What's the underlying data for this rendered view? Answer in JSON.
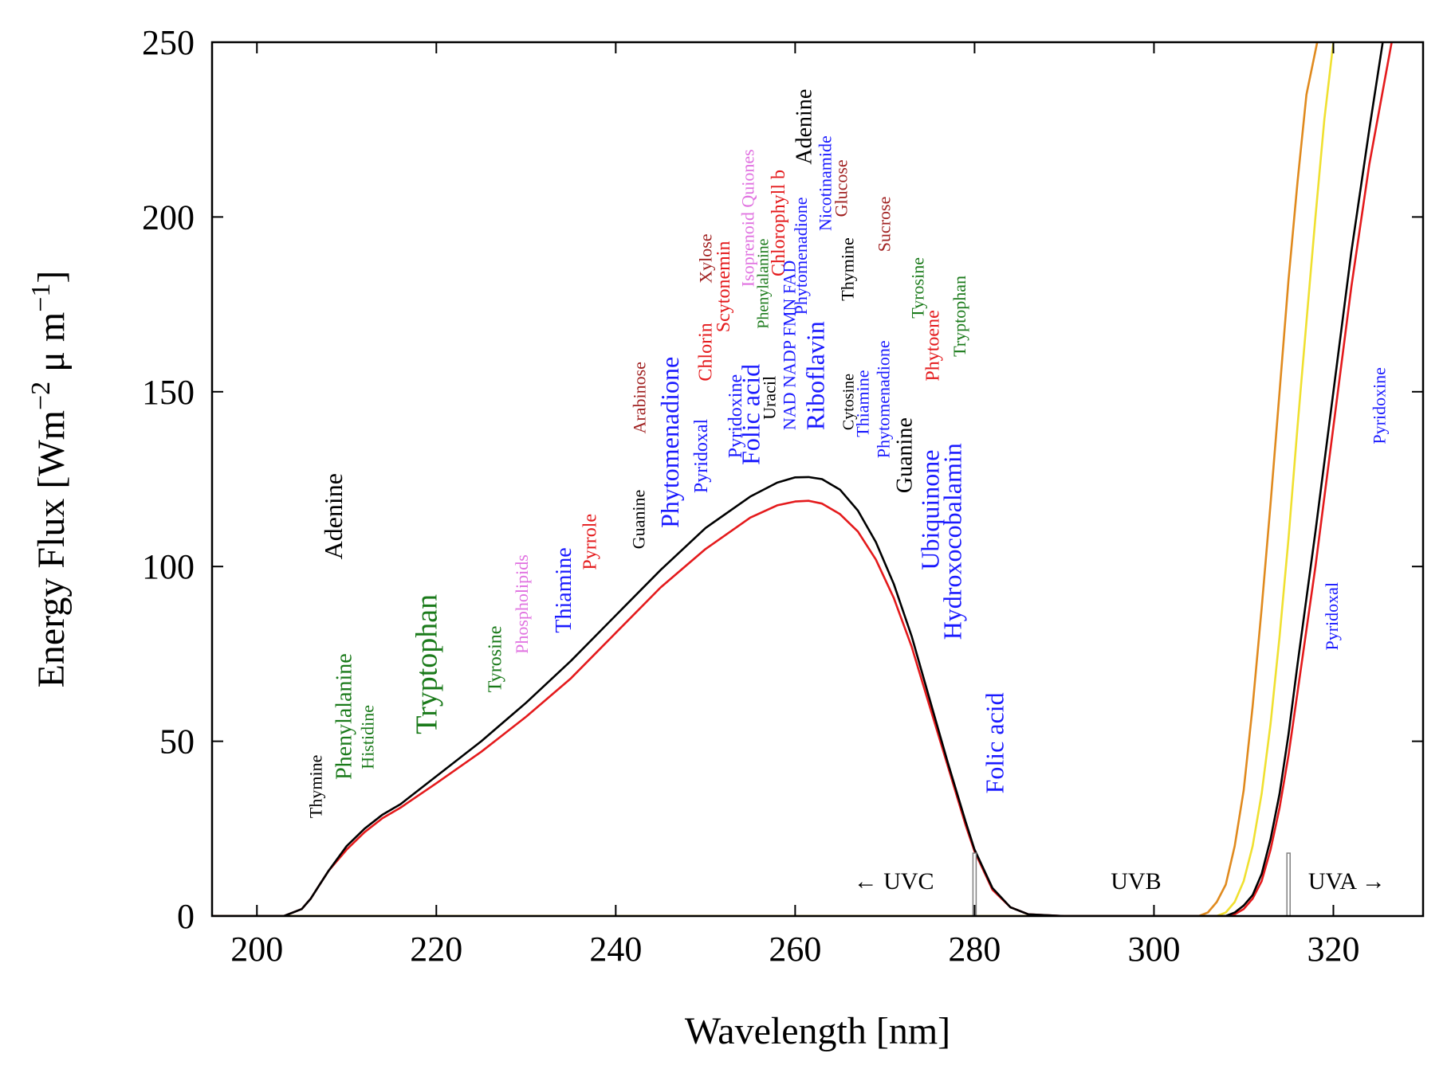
{
  "chart_data": {
    "type": "line",
    "title": "",
    "xlabel": "Wavelength [nm]",
    "ylabel": "Energy Flux [Wm",
    "ylabel_sup1": "−2",
    "ylabel_mid": " μ m",
    "ylabel_sup2": "−1",
    "ylabel_end": "]",
    "xlim": [
      195,
      330
    ],
    "ylim": [
      0,
      250
    ],
    "xticks": [
      200,
      220,
      240,
      260,
      280,
      300,
      320
    ],
    "yticks": [
      0,
      50,
      100,
      150,
      200,
      250
    ],
    "grid": false,
    "colors": {
      "black": "#000000",
      "red": "#e41a1c",
      "orange": "#e08a1e",
      "yellow": "#f0e030",
      "green": "#1a7a1a",
      "blue": "#1a1aff",
      "darkred": "#a02020",
      "violet": "#e070e0",
      "boundary": "#808080"
    },
    "series": [
      {
        "color": "#000000",
        "x": [
          195,
          203,
          205,
          206,
          207,
          208,
          210,
          212,
          214,
          216,
          220,
          225,
          230,
          235,
          240,
          245,
          250,
          255,
          258,
          260,
          261.5,
          263,
          265,
          267,
          269,
          271,
          273,
          275,
          277,
          279,
          280,
          282,
          284,
          286,
          290,
          300,
          308,
          309,
          310,
          311,
          312,
          313,
          314,
          315,
          316,
          318,
          320,
          322,
          324,
          325.5
        ],
        "y": [
          0,
          0,
          2,
          5,
          9,
          13,
          20,
          25,
          29,
          32,
          40,
          50,
          61,
          73,
          86,
          99,
          111,
          120,
          124,
          125.5,
          125.6,
          125,
          122,
          116,
          107,
          95,
          80,
          62,
          44,
          27,
          19,
          8,
          2.5,
          0.5,
          0,
          0,
          0,
          1,
          3,
          6,
          12,
          22,
          35,
          52,
          72,
          110,
          150,
          190,
          225,
          250
        ]
      },
      {
        "color": "#e41a1c",
        "x": [
          195,
          203,
          205,
          206,
          207,
          208,
          210,
          212,
          214,
          216,
          220,
          225,
          230,
          235,
          240,
          245,
          250,
          255,
          258,
          260,
          261.5,
          263,
          265,
          267,
          269,
          271,
          273,
          275,
          277,
          279,
          280,
          282,
          284,
          286,
          290,
          300,
          308,
          309,
          310,
          311,
          312,
          313,
          314,
          315,
          316,
          318,
          320,
          322,
          324,
          326.5
        ],
        "y": [
          0,
          0,
          2,
          5,
          9,
          13,
          19,
          24,
          28,
          31,
          38,
          47,
          57,
          68,
          81,
          94,
          105,
          114,
          117.5,
          118.6,
          118.8,
          118,
          115,
          110,
          102,
          91,
          77,
          60,
          43,
          26,
          18.5,
          7.5,
          2.5,
          0.5,
          0,
          0,
          0,
          0.5,
          2,
          5,
          10,
          19,
          31,
          46,
          64,
          100,
          140,
          180,
          215,
          250
        ]
      },
      {
        "color": "#e08a1e",
        "x": [
          195,
          305,
          306,
          307,
          308,
          309,
          310,
          311,
          312,
          313,
          314,
          315,
          316,
          317,
          318.2
        ],
        "y": [
          0,
          0,
          1,
          4,
          9,
          20,
          36,
          60,
          88,
          118,
          150,
          182,
          210,
          235,
          250
        ]
      },
      {
        "color": "#f0e030",
        "x": [
          195,
          307,
          308,
          309,
          310,
          311,
          312,
          313,
          314,
          315,
          316,
          317,
          318,
          319,
          320
        ],
        "y": [
          0,
          0,
          1,
          4,
          10,
          20,
          35,
          55,
          80,
          108,
          140,
          170,
          200,
          228,
          250
        ]
      }
    ],
    "boundaries": [
      {
        "x": 280,
        "ymax": 18,
        "color": "#808080"
      },
      {
        "x": 315,
        "ymax": 18,
        "color": "#808080"
      }
    ],
    "region_labels": [
      {
        "text": "← UVC",
        "x": 271,
        "y": 10
      },
      {
        "text": "UVB",
        "x": 298,
        "y": 10
      },
      {
        "text": "UVA →",
        "x": 321.5,
        "y": 10
      }
    ],
    "annotations": [
      {
        "text": "Thymine",
        "x": 207.2,
        "y": 28,
        "color": "#000000",
        "size": 22
      },
      {
        "text": "Adenine",
        "x": 209.5,
        "y": 102,
        "color": "#000000",
        "size": 32
      },
      {
        "text": "Phenylalanine",
        "x": 210.5,
        "y": 39,
        "color": "#1a7a1a",
        "size": 28
      },
      {
        "text": "Histidine",
        "x": 213,
        "y": 42,
        "color": "#1a7a1a",
        "size": 22
      },
      {
        "text": "Tryptophan",
        "x": 220,
        "y": 52,
        "color": "#1a7a1a",
        "size": 38
      },
      {
        "text": "Tyrosine",
        "x": 227.2,
        "y": 64,
        "color": "#1a7a1a",
        "size": 24
      },
      {
        "text": "Phospholipids",
        "x": 230.2,
        "y": 75,
        "color": "#e070e0",
        "size": 22
      },
      {
        "text": "Thiamine",
        "x": 235,
        "y": 81,
        "color": "#1a1aff",
        "size": 28
      },
      {
        "text": "Pyrrole",
        "x": 237.8,
        "y": 99,
        "color": "#e41a1c",
        "size": 24
      },
      {
        "text": "Guanine",
        "x": 243.2,
        "y": 105,
        "color": "#000000",
        "size": 22
      },
      {
        "text": "Arabinose",
        "x": 243.3,
        "y": 138,
        "color": "#a02020",
        "size": 22
      },
      {
        "text": "Phytomenadione",
        "x": 247,
        "y": 111,
        "color": "#1a1aff",
        "size": 32
      },
      {
        "text": "Pyridoxal",
        "x": 250.2,
        "y": 121,
        "color": "#1a1aff",
        "size": 24
      },
      {
        "text": "Chlorin",
        "x": 250.7,
        "y": 153,
        "color": "#e41a1c",
        "size": 24
      },
      {
        "text": "Xylose",
        "x": 250.7,
        "y": 181,
        "color": "#a02020",
        "size": 22
      },
      {
        "text": "Scytonemin",
        "x": 252.7,
        "y": 167,
        "color": "#e41a1c",
        "size": 24
      },
      {
        "text": "Pyridoxine",
        "x": 254,
        "y": 131,
        "color": "#1a1aff",
        "size": 24
      },
      {
        "text": "Folic acid",
        "x": 256,
        "y": 129,
        "color": "#1a1aff",
        "size": 32
      },
      {
        "text": "Isoprenoid Quiones",
        "x": 255.4,
        "y": 180,
        "color": "#e070e0",
        "size": 22
      },
      {
        "text": "Phenylalanine",
        "x": 257,
        "y": 168,
        "color": "#1a7a1a",
        "size": 20
      },
      {
        "text": "Uracil",
        "x": 257.8,
        "y": 142,
        "color": "#000000",
        "size": 22
      },
      {
        "text": "Chlorophyll b",
        "x": 258.8,
        "y": 183,
        "color": "#e41a1c",
        "size": 24
      },
      {
        "text": "NAD NADP FMN FAD",
        "x": 260,
        "y": 139,
        "color": "#1a1aff",
        "size": 22
      },
      {
        "text": "Phytomenadione",
        "x": 261.3,
        "y": 172,
        "color": "#1a1aff",
        "size": 22
      },
      {
        "text": "Adenine",
        "x": 261.8,
        "y": 215,
        "color": "#000000",
        "size": 28
      },
      {
        "text": "Riboflavin",
        "x": 263.2,
        "y": 139,
        "color": "#1a1aff",
        "size": 32
      },
      {
        "text": "Nicotinamide",
        "x": 264,
        "y": 196,
        "color": "#1a1aff",
        "size": 22
      },
      {
        "text": "Glucose",
        "x": 265.8,
        "y": 200,
        "color": "#a02020",
        "size": 22
      },
      {
        "text": "Thymine",
        "x": 266.5,
        "y": 176,
        "color": "#000000",
        "size": 22
      },
      {
        "text": "Cytosine",
        "x": 266.5,
        "y": 139,
        "color": "#000000",
        "size": 20
      },
      {
        "text": "Thiamine",
        "x": 268.2,
        "y": 137,
        "color": "#1a1aff",
        "size": 22
      },
      {
        "text": "Phytomenadione",
        "x": 270.5,
        "y": 131,
        "color": "#1a1aff",
        "size": 22
      },
      {
        "text": "Sucrose",
        "x": 270.6,
        "y": 190,
        "color": "#a02020",
        "size": 22
      },
      {
        "text": "Guanine",
        "x": 273,
        "y": 121,
        "color": "#000000",
        "size": 28
      },
      {
        "text": "Tyrosine",
        "x": 274.3,
        "y": 171,
        "color": "#1a7a1a",
        "size": 22
      },
      {
        "text": "Phytoene",
        "x": 276,
        "y": 153,
        "color": "#e41a1c",
        "size": 24
      },
      {
        "text": "Ubiquinone",
        "x": 276,
        "y": 99,
        "color": "#1a1aff",
        "size": 32
      },
      {
        "text": "Hydroxocobalamin",
        "x": 278.5,
        "y": 79,
        "color": "#1a1aff",
        "size": 32
      },
      {
        "text": "Tryptophan",
        "x": 279,
        "y": 160,
        "color": "#1a7a1a",
        "size": 22
      },
      {
        "text": "Folic acid",
        "x": 283.2,
        "y": 35,
        "color": "#1a1aff",
        "size": 32
      },
      {
        "text": "Pyridoxal",
        "x": 320.5,
        "y": 76,
        "color": "#1a1aff",
        "size": 22
      },
      {
        "text": "Pyridoxine",
        "x": 325.8,
        "y": 135,
        "color": "#1a1aff",
        "size": 22
      }
    ]
  }
}
